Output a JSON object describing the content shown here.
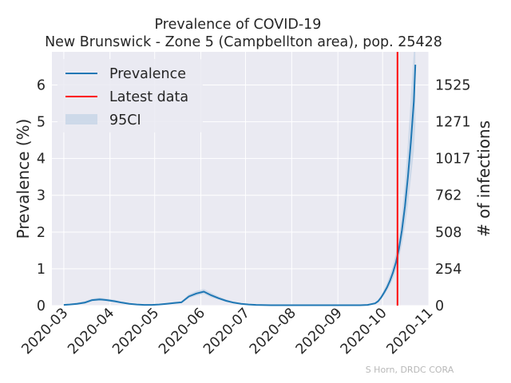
{
  "chart_data": {
    "type": "line",
    "title": "Prevalence of COVID-19",
    "subtitle": "New Brunswick - Zone 5 (Campbellton area), pop. 25428",
    "ylabel": "Prevalence (%)",
    "y2label": "# of infections",
    "ylim": [
      0,
      6.9
    ],
    "yticks": [
      0,
      1,
      2,
      3,
      4,
      5,
      6
    ],
    "y2ticks": [
      0,
      254,
      508,
      762,
      1017,
      1271,
      1525
    ],
    "xlim": [
      "2020-02-22",
      "2020-11-01"
    ],
    "xticks": [
      "2020-03",
      "2020-04",
      "2020-05",
      "2020-06",
      "2020-07",
      "2020-08",
      "2020-09",
      "2020-10",
      "2020-11"
    ],
    "grid": true,
    "legend_position": "top-left",
    "legend": [
      "Prevalence",
      "Latest data",
      "95CI"
    ],
    "latest_data_date": "2020-10-11",
    "colors": {
      "prevalence": "#1f77b4",
      "latest": "#ff0000",
      "ci": "#b9cde3",
      "background": "#eaeaf2",
      "grid": "#ffffff"
    },
    "series": [
      {
        "name": "Prevalence",
        "x": [
          "2020-03-01",
          "2020-03-05",
          "2020-03-10",
          "2020-03-15",
          "2020-03-20",
          "2020-03-25",
          "2020-03-30",
          "2020-04-04",
          "2020-04-09",
          "2020-04-14",
          "2020-04-19",
          "2020-04-24",
          "2020-04-29",
          "2020-05-04",
          "2020-05-09",
          "2020-05-14",
          "2020-05-19",
          "2020-05-24",
          "2020-05-29",
          "2020-06-03",
          "2020-06-08",
          "2020-06-13",
          "2020-06-18",
          "2020-06-23",
          "2020-06-28",
          "2020-07-03",
          "2020-07-08",
          "2020-07-18",
          "2020-07-28",
          "2020-08-07",
          "2020-08-17",
          "2020-08-27",
          "2020-09-06",
          "2020-09-16",
          "2020-09-21",
          "2020-09-26",
          "2020-09-28",
          "2020-09-30",
          "2020-10-02",
          "2020-10-04",
          "2020-10-06",
          "2020-10-08",
          "2020-10-10",
          "2020-10-12",
          "2020-10-14",
          "2020-10-16",
          "2020-10-18",
          "2020-10-20",
          "2020-10-22",
          "2020-10-23"
        ],
        "values": [
          0.02,
          0.03,
          0.05,
          0.08,
          0.15,
          0.17,
          0.15,
          0.12,
          0.08,
          0.05,
          0.03,
          0.02,
          0.02,
          0.03,
          0.05,
          0.07,
          0.09,
          0.25,
          0.33,
          0.38,
          0.28,
          0.2,
          0.13,
          0.08,
          0.05,
          0.03,
          0.02,
          0.01,
          0.01,
          0.01,
          0.01,
          0.01,
          0.01,
          0.01,
          0.02,
          0.06,
          0.12,
          0.22,
          0.35,
          0.5,
          0.68,
          0.9,
          1.18,
          1.55,
          2.05,
          2.7,
          3.5,
          4.45,
          5.55,
          6.55
        ]
      }
    ],
    "ci": {
      "lower": [
        0.01,
        0.02,
        0.03,
        0.05,
        0.12,
        0.13,
        0.12,
        0.09,
        0.06,
        0.03,
        0.02,
        0.01,
        0.01,
        0.02,
        0.03,
        0.05,
        0.07,
        0.2,
        0.27,
        0.32,
        0.22,
        0.16,
        0.1,
        0.06,
        0.04,
        0.02,
        0.01,
        0.0,
        0.0,
        0.0,
        0.0,
        0.0,
        0.0,
        0.0,
        0.01,
        0.04,
        0.09,
        0.17,
        0.28,
        0.41,
        0.55,
        0.74,
        0.97,
        1.27,
        1.66,
        2.15,
        2.75,
        3.45,
        4.2,
        4.9
      ],
      "upper": [
        0.03,
        0.05,
        0.08,
        0.12,
        0.19,
        0.22,
        0.19,
        0.16,
        0.11,
        0.07,
        0.05,
        0.03,
        0.03,
        0.05,
        0.07,
        0.1,
        0.12,
        0.31,
        0.4,
        0.45,
        0.35,
        0.25,
        0.17,
        0.11,
        0.07,
        0.05,
        0.03,
        0.02,
        0.02,
        0.02,
        0.02,
        0.02,
        0.02,
        0.02,
        0.04,
        0.09,
        0.16,
        0.28,
        0.44,
        0.62,
        0.84,
        1.1,
        1.44,
        1.88,
        2.5,
        3.35,
        4.4,
        5.7,
        6.9,
        6.9
      ]
    },
    "credit": "S Horn, DRDC CORA"
  }
}
